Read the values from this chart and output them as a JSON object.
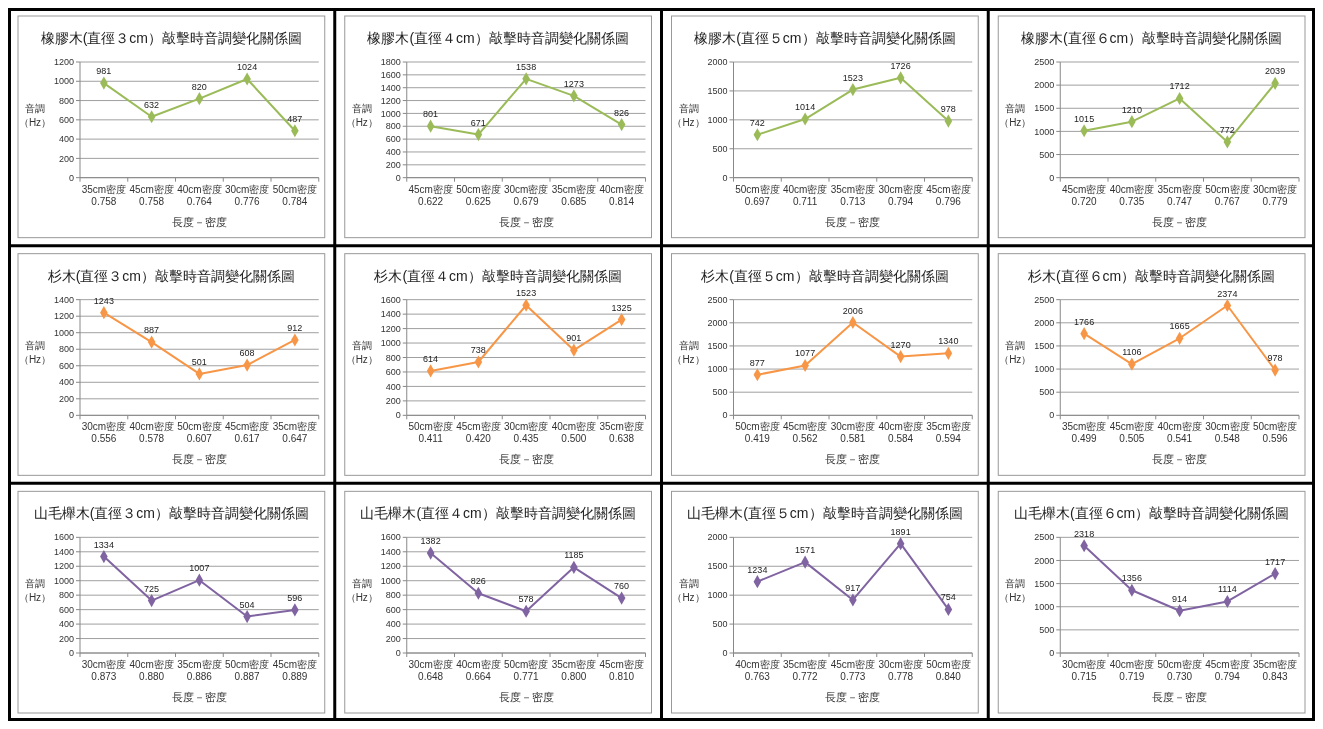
{
  "chart_data": [
    {
      "type": "line",
      "title": "橡膠木(直徑３cm）敲擊時音調變化關係圖",
      "xlabel": "長度－密度",
      "ylabel": "音調（Hz）",
      "categories": [
        "35cm密度0.758",
        "45cm密度0.758",
        "40cm密度0.764",
        "30cm密度0.776",
        "50cm密度0.784"
      ],
      "series": [
        {
          "color": "#9bbb59",
          "values": [
            981,
            632,
            820,
            1024,
            487
          ]
        }
      ],
      "ylim": [
        0,
        1200
      ],
      "yticks": [
        0,
        200,
        400,
        600,
        800,
        1000,
        1200
      ],
      "grid": "y",
      "marker": "diamond",
      "data_labels": true
    },
    {
      "type": "line",
      "title": "橡膠木(直徑４cm）敲擊時音調變化關係圖",
      "xlabel": "長度－密度",
      "ylabel": "音調（Hz）",
      "categories": [
        "45cm密度0.622",
        "50cm密度0.625",
        "30cm密度0.679",
        "35cm密度0.685",
        "40cm密度0.814"
      ],
      "series": [
        {
          "color": "#9bbb59",
          "values": [
            801,
            671,
            1538,
            1273,
            826
          ]
        }
      ],
      "ylim": [
        0,
        1800
      ],
      "yticks": [
        0,
        200,
        400,
        600,
        800,
        1000,
        1200,
        1400,
        1600,
        1800
      ],
      "grid": "y",
      "marker": "diamond",
      "data_labels": true
    },
    {
      "type": "line",
      "title": "橡膠木(直徑５cm）敲擊時音調變化關係圖",
      "xlabel": "長度－密度",
      "ylabel": "音調（Hz）",
      "categories": [
        "50cm密度0.697",
        "40cm密度0.711",
        "35cm密度0.713",
        "30cm密度0.794",
        "45cm密度0.796"
      ],
      "series": [
        {
          "color": "#9bbb59",
          "values": [
            742,
            1014,
            1523,
            1726,
            978
          ]
        }
      ],
      "ylim": [
        0,
        2000
      ],
      "yticks": [
        0,
        500,
        1000,
        1500,
        2000
      ],
      "grid": "y",
      "marker": "diamond",
      "data_labels": true
    },
    {
      "type": "line",
      "title": "橡膠木(直徑６cm）敲擊時音調變化關係圖",
      "xlabel": "長度－密度",
      "ylabel": "音調（Hz）",
      "categories": [
        "45cm密度0.720",
        "40cm密度0.735",
        "35cm密度0.747",
        "50cm密度0.767",
        "30cm密度0.779"
      ],
      "series": [
        {
          "color": "#9bbb59",
          "values": [
            1015,
            1210,
            1712,
            772,
            2039
          ]
        }
      ],
      "ylim": [
        0,
        2500
      ],
      "yticks": [
        0,
        500,
        1000,
        1500,
        2000,
        2500
      ],
      "grid": "y",
      "marker": "diamond",
      "data_labels": true
    },
    {
      "type": "line",
      "title": "杉木(直徑３cm）敲擊時音調變化關係圖",
      "xlabel": "長度－密度",
      "ylabel": "音調（Hz）",
      "categories": [
        "30cm密度0.556",
        "40cm密度0.578",
        "50cm密度0.607",
        "45cm密度0.617",
        "35cm密度0.647"
      ],
      "series": [
        {
          "color": "#f79646",
          "values": [
            1243,
            887,
            501,
            608,
            912
          ]
        }
      ],
      "ylim": [
        0,
        1400
      ],
      "yticks": [
        0,
        200,
        400,
        600,
        800,
        1000,
        1200,
        1400
      ],
      "grid": "y",
      "marker": "diamond",
      "data_labels": true
    },
    {
      "type": "line",
      "title": "杉木(直徑４cm）敲擊時音調變化關係圖",
      "xlabel": "長度－密度",
      "ylabel": "音調（Hz）",
      "categories": [
        "50cm密度0.411",
        "45cm密度0.420",
        "30cm密度0.435",
        "40cm密度0.500",
        "35cm密度0.638"
      ],
      "series": [
        {
          "color": "#f79646",
          "values": [
            614,
            738,
            1523,
            901,
            1325
          ]
        }
      ],
      "ylim": [
        0,
        1600
      ],
      "yticks": [
        0,
        200,
        400,
        600,
        800,
        1000,
        1200,
        1400,
        1600
      ],
      "grid": "y",
      "marker": "diamond",
      "data_labels": true
    },
    {
      "type": "line",
      "title": "杉木(直徑５cm）敲擊時音調變化關係圖",
      "xlabel": "長度－密度",
      "ylabel": "音調（Hz）",
      "categories": [
        "50cm密度0.419",
        "45cm密度0.562",
        "30cm密度0.581",
        "40cm密度0.584",
        "35cm密度0.594"
      ],
      "series": [
        {
          "color": "#f79646",
          "values": [
            877,
            1077,
            2006,
            1270,
            1340
          ]
        }
      ],
      "ylim": [
        0,
        2500
      ],
      "yticks": [
        0,
        500,
        1000,
        1500,
        2000,
        2500
      ],
      "grid": "y",
      "marker": "diamond",
      "data_labels": true
    },
    {
      "type": "line",
      "title": "杉木(直徑６cm）敲擊時音調變化關係圖",
      "xlabel": "長度－密度",
      "ylabel": "音調（Hz）",
      "categories": [
        "35cm密度0.499",
        "45cm密度0.505",
        "40cm密度0.541",
        "30cm密度0.548",
        "50cm密度0.596"
      ],
      "series": [
        {
          "color": "#f79646",
          "values": [
            1766,
            1106,
            1665,
            2374,
            978
          ]
        }
      ],
      "ylim": [
        0,
        2500
      ],
      "yticks": [
        0,
        500,
        1000,
        1500,
        2000,
        2500
      ],
      "grid": "y",
      "marker": "diamond",
      "data_labels": true
    },
    {
      "type": "line",
      "title": "山毛櫸木(直徑３cm）敲擊時音調變化關係圖",
      "xlabel": "長度－密度",
      "ylabel": "音調（Hz）",
      "categories": [
        "30cm密度0.873",
        "40cm密度0.880",
        "35cm密度0.886",
        "50cm密度0.887",
        "45cm密度0.889"
      ],
      "series": [
        {
          "color": "#8064a2",
          "values": [
            1334,
            725,
            1007,
            504,
            596
          ]
        }
      ],
      "ylim": [
        0,
        1600
      ],
      "yticks": [
        0,
        200,
        400,
        600,
        800,
        1000,
        1200,
        1400,
        1600
      ],
      "grid": "y",
      "marker": "diamond",
      "data_labels": true
    },
    {
      "type": "line",
      "title": "山毛櫸木(直徑４cm）敲擊時音調變化關係圖",
      "xlabel": "長度－密度",
      "ylabel": "音調（Hz）",
      "categories": [
        "30cm密度0.648",
        "40cm密度0.664",
        "50cm密度0.771",
        "35cm密度0.800",
        "45cm密度0.810"
      ],
      "series": [
        {
          "color": "#8064a2",
          "values": [
            1382,
            826,
            578,
            1185,
            760
          ]
        }
      ],
      "ylim": [
        0,
        1600
      ],
      "yticks": [
        0,
        200,
        400,
        600,
        800,
        1000,
        1200,
        1400,
        1600
      ],
      "grid": "y",
      "marker": "diamond",
      "data_labels": true
    },
    {
      "type": "line",
      "title": "山毛櫸木(直徑５cm）敲擊時音調變化關係圖",
      "xlabel": "長度－密度",
      "ylabel": "音調（Hz）",
      "categories": [
        "40cm密度0.763",
        "35cm密度0.772",
        "45cm密度0.773",
        "30cm密度0.778",
        "50cm密度0.840"
      ],
      "series": [
        {
          "color": "#8064a2",
          "values": [
            1234,
            1571,
            917,
            1891,
            754
          ]
        }
      ],
      "ylim": [
        0,
        2000
      ],
      "yticks": [
        0,
        500,
        1000,
        1500,
        2000
      ],
      "grid": "y",
      "marker": "diamond",
      "data_labels": true
    },
    {
      "type": "line",
      "title": "山毛櫸木(直徑６cm）敲擊時音調變化關係圖",
      "xlabel": "長度－密度",
      "ylabel": "音調（Hz）",
      "categories": [
        "30cm密度0.715",
        "40cm密度0.719",
        "50cm密度0.730",
        "45cm密度0.794",
        "35cm密度0.843"
      ],
      "series": [
        {
          "color": "#8064a2",
          "values": [
            2318,
            1356,
            914,
            1114,
            1717
          ]
        }
      ],
      "ylim": [
        0,
        2500
      ],
      "yticks": [
        0,
        500,
        1000,
        1500,
        2000,
        2500
      ],
      "grid": "y",
      "marker": "diamond",
      "data_labels": true
    }
  ]
}
